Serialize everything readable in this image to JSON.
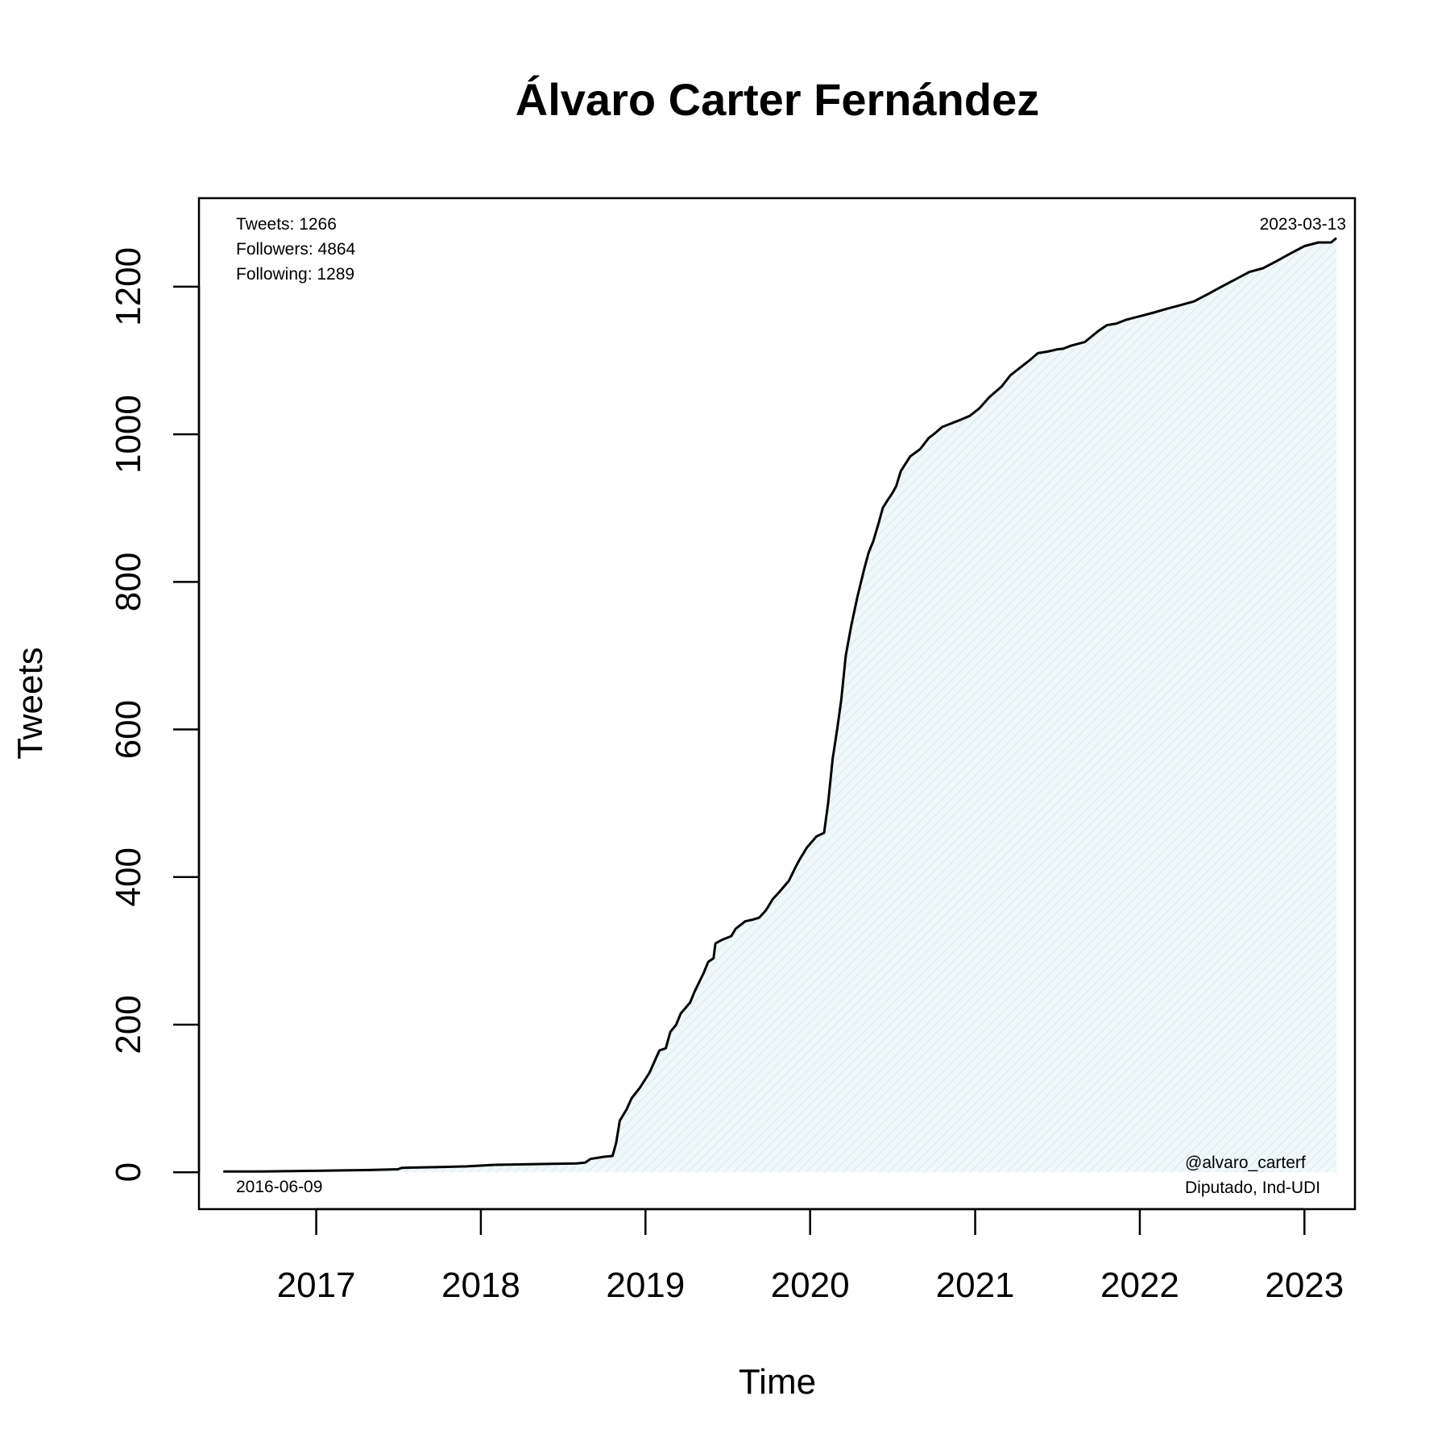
{
  "chart_data": {
    "type": "area",
    "title": "Álvaro Carter Fernández",
    "xlabel": "Time",
    "ylabel": "Tweets",
    "x_ticks": [
      "2017",
      "2018",
      "2019",
      "2020",
      "2021",
      "2022",
      "2023"
    ],
    "y_ticks": [
      0,
      200,
      400,
      600,
      800,
      1000,
      1200
    ],
    "xlim": [
      "2016-04-16",
      "2023-04-23"
    ],
    "ylim": [
      -50,
      1320
    ],
    "grid": false,
    "legend": "none",
    "stats": [
      "Tweets: 1266",
      "Followers: 4864",
      "Following: 1289"
    ],
    "start_date": "2016-06-09",
    "end_date": "2023-03-13",
    "handle": "@alvaro_carterf",
    "role": "Diputado, Ind-UDI",
    "colors": {
      "line": "#000000",
      "fill": "#e8f3f5"
    },
    "series": [
      {
        "x": [
          "2016-06-09",
          "2016-09-01",
          "2017-01-01",
          "2017-05-01",
          "2017-07-01",
          "2017-07-10",
          "2017-10-01",
          "2017-12-01",
          "2018-02-01",
          "2018-05-01",
          "2018-08-01",
          "2018-08-20",
          "2018-09-01",
          "2018-10-01",
          "2018-10-20",
          "2018-10-28",
          "2018-11-05",
          "2018-11-20",
          "2018-12-01",
          "2018-12-20",
          "2019-01-10",
          "2019-02-01",
          "2019-02-15",
          "2019-02-25",
          "2019-03-10",
          "2019-03-20",
          "2019-04-10",
          "2019-04-20",
          "2019-05-10",
          "2019-05-20",
          "2019-06-01",
          "2019-06-05",
          "2019-06-20",
          "2019-07-10",
          "2019-07-20",
          "2019-08-10",
          "2019-08-25",
          "2019-09-10",
          "2019-09-25",
          "2019-10-10",
          "2019-10-25",
          "2019-11-15",
          "2019-12-01",
          "2019-12-10",
          "2019-12-25",
          "2020-01-15",
          "2020-02-01",
          "2020-02-10",
          "2020-02-20",
          "2020-03-01",
          "2020-03-10",
          "2020-03-20",
          "2020-04-01",
          "2020-04-15",
          "2020-05-01",
          "2020-05-10",
          "2020-05-20",
          "2020-06-01",
          "2020-06-10",
          "2020-06-20",
          "2020-07-01",
          "2020-07-10",
          "2020-07-20",
          "2020-08-10",
          "2020-09-01",
          "2020-09-20",
          "2020-10-01",
          "2020-10-20",
          "2020-11-10",
          "2020-12-01",
          "2020-12-20",
          "2021-01-10",
          "2021-02-01",
          "2021-03-01",
          "2021-03-20",
          "2021-04-10",
          "2021-05-01",
          "2021-05-20",
          "2021-06-10",
          "2021-07-01",
          "2021-07-15",
          "2021-08-01",
          "2021-09-01",
          "2021-10-01",
          "2021-10-20",
          "2021-11-10",
          "2021-12-01",
          "2022-01-01",
          "2022-02-01",
          "2022-03-01",
          "2022-04-01",
          "2022-05-01",
          "2022-06-01",
          "2022-07-01",
          "2022-08-01",
          "2022-09-01",
          "2022-10-01",
          "2022-11-01",
          "2022-12-01",
          "2023-01-01",
          "2023-02-01",
          "2023-03-01",
          "2023-03-13"
        ],
        "y": [
          1,
          1,
          2,
          3,
          4,
          6,
          7,
          8,
          10,
          11,
          12,
          13,
          18,
          21,
          22,
          40,
          70,
          85,
          100,
          115,
          135,
          165,
          168,
          190,
          200,
          215,
          230,
          245,
          270,
          285,
          290,
          310,
          315,
          320,
          330,
          340,
          342,
          345,
          355,
          370,
          380,
          395,
          415,
          425,
          440,
          455,
          460,
          500,
          560,
          600,
          640,
          700,
          740,
          780,
          820,
          840,
          855,
          880,
          900,
          910,
          920,
          930,
          950,
          970,
          980,
          995,
          1000,
          1010,
          1015,
          1020,
          1025,
          1035,
          1050,
          1065,
          1080,
          1090,
          1100,
          1110,
          1112,
          1115,
          1116,
          1120,
          1125,
          1140,
          1148,
          1150,
          1155,
          1160,
          1165,
          1170,
          1175,
          1180,
          1190,
          1200,
          1210,
          1220,
          1225,
          1235,
          1245,
          1255,
          1260,
          1260,
          1266
        ]
      }
    ]
  }
}
